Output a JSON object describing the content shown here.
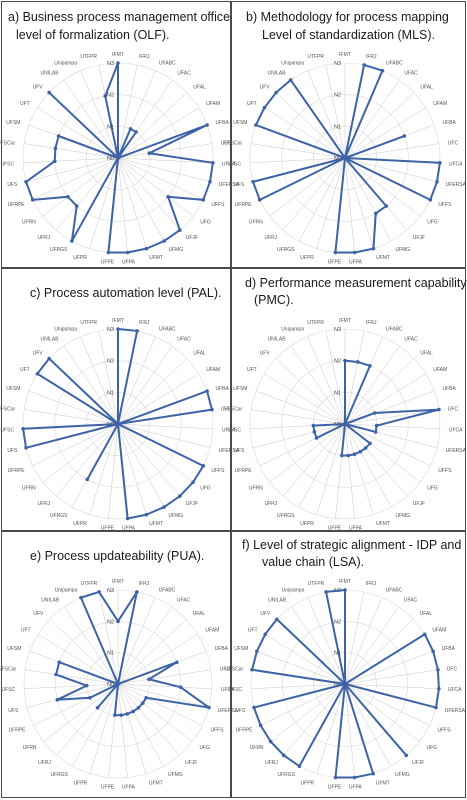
{
  "chart_data": [
    {
      "id": "olf",
      "type": "radar",
      "title_line1": "a) Business process management office",
      "title_line2": "level of formalization (OLF).",
      "levels": [
        "N0",
        "N1",
        "N2",
        "N3"
      ],
      "rlim": [
        0,
        3
      ],
      "categories": [
        "IFMT",
        "IFRJ",
        "UFABC",
        "UFAC",
        "UFAL",
        "UFAM",
        "UFBA",
        "UFC",
        "UFCA",
        "UFERSA",
        "UFFS",
        "UFG",
        "UFJF",
        "UFMG",
        "UFMT",
        "UFPA",
        "UFPE",
        "UFPR",
        "UFRGS",
        "UFRJ",
        "UFRN",
        "UFRPE",
        "UFS",
        "UFSC",
        "UFSCar",
        "UFSM",
        "UFT",
        "UFV",
        "UNILAB",
        "Unipampa",
        "UTFPR"
      ],
      "values": [
        3,
        0,
        1,
        1,
        0,
        0,
        3,
        1,
        3,
        3,
        3,
        2,
        3,
        3,
        3,
        3,
        3,
        0,
        3,
        2,
        2,
        3,
        3,
        2,
        2,
        2,
        0,
        3,
        0,
        0,
        2
      ]
    },
    {
      "id": "mls",
      "type": "radar",
      "title_line1": "b) Methodology for process mapping",
      "title_line2": "Level of standardization (MLS).",
      "levels": [
        "N0",
        "N1",
        "N2",
        "N3"
      ],
      "rlim": [
        0,
        3
      ],
      "categories": [
        "IFMT",
        "IFRJ",
        "UFABC",
        "UFAC",
        "UFAL",
        "UFAM",
        "UFBA",
        "UFC",
        "UFCA",
        "UFERSA",
        "UFFS",
        "UFG",
        "UFJF",
        "UFMG",
        "UFMT",
        "UFPA",
        "UFPE",
        "UFPR",
        "UFRGS",
        "UFRJ",
        "UFRN",
        "UFRPE",
        "UFS",
        "UFSC",
        "UFSCar",
        "UFSM",
        "UFT",
        "UFV",
        "UNILAB",
        "Unipampa",
        "UTFPR"
      ],
      "values": [
        0,
        3,
        3,
        0,
        0,
        0,
        2,
        0,
        3,
        3,
        3,
        0,
        2,
        2,
        3,
        3,
        3,
        0,
        0,
        0,
        0,
        3,
        3,
        0,
        0,
        3,
        3,
        3,
        3,
        0,
        0
      ]
    },
    {
      "id": "pal",
      "type": "radar",
      "title_line1": "c) Process automation level (PAL).",
      "title_line2": "",
      "levels": [
        "N0",
        "N1",
        "N2",
        "N3"
      ],
      "rlim": [
        0,
        3
      ],
      "categories": [
        "IFMT",
        "IFRJ",
        "UFABC",
        "UFAC",
        "UFAL",
        "UFAM",
        "UFBA",
        "UFC",
        "UFCA",
        "UFERSA",
        "UFFS",
        "UFG",
        "UFJF",
        "UFMG",
        "UFMT",
        "UFPA",
        "UFPE",
        "UFPR",
        "UFRGS",
        "UFRJ",
        "UFRN",
        "UFRPE",
        "UFS",
        "UFSC",
        "UFSCar",
        "UFSM",
        "UFT",
        "UFV",
        "UNILAB",
        "Unipampa",
        "UTFPR"
      ],
      "values": [
        3,
        3,
        0,
        0,
        0,
        0,
        3,
        3,
        0,
        0,
        3,
        3,
        3,
        3,
        3,
        3,
        0,
        0,
        2,
        0,
        0,
        0,
        3,
        3,
        0,
        0,
        3,
        3,
        0,
        0,
        0
      ]
    },
    {
      "id": "pmc",
      "type": "radar",
      "title_line1": "d) Performance measurement capability",
      "title_line2": "(PMC).",
      "levels": [
        "N0",
        "N1",
        "N2",
        "N3"
      ],
      "rlim": [
        0,
        3
      ],
      "categories": [
        "IFMT",
        "IFRJ",
        "UFABC",
        "UFAC",
        "UFAL",
        "UFAM",
        "UFBA",
        "UFC",
        "UFCA",
        "UFERSA",
        "UFFS",
        "UFG",
        "UFJF",
        "UFMG",
        "UFMT",
        "UFPA",
        "UFPE",
        "UFPR",
        "UFRGS",
        "UFRJ",
        "UFRN",
        "UFRPE",
        "UFS",
        "UFSC",
        "UFSCar",
        "UFSM",
        "UFT",
        "UFV",
        "UNILAB",
        "Unipampa",
        "UTFPR"
      ],
      "values": [
        2,
        2,
        2,
        0,
        0,
        0,
        1,
        3,
        1,
        1,
        0,
        1,
        1,
        1,
        1,
        1,
        1,
        0,
        0,
        0,
        0,
        1,
        1,
        1,
        0,
        0,
        0,
        0,
        0,
        0,
        0
      ]
    },
    {
      "id": "pua",
      "type": "radar",
      "title_line1": "e) Process updateability (PUA).",
      "title_line2": "",
      "levels": [
        "N0",
        "N1",
        "N2",
        "N3"
      ],
      "rlim": [
        0,
        3
      ],
      "categories": [
        "IFMT",
        "IFRJ",
        "UFABC",
        "UFAC",
        "UFAL",
        "UFAM",
        "UFBA",
        "UFC",
        "UFCA",
        "UFERSA",
        "UFFS",
        "UFG",
        "UFJF",
        "UFMG",
        "UFMT",
        "UFPA",
        "UFPE",
        "UFPR",
        "UFRGS",
        "UFRJ",
        "UFRN",
        "UFRPE",
        "UFS",
        "UFSC",
        "UFSCar",
        "UFSM",
        "UFT",
        "UFV",
        "UNILAB",
        "Unipampa",
        "UTFPR"
      ],
      "values": [
        2,
        3,
        0,
        0,
        0,
        0,
        2,
        1,
        2,
        3,
        1,
        1,
        1,
        1,
        1,
        1,
        1,
        0,
        0,
        1,
        0,
        1,
        2,
        1,
        2,
        2,
        0,
        0,
        0,
        3,
        3
      ]
    },
    {
      "id": "lsa",
      "type": "radar",
      "title_line1": "f) Level of strategic alignment - IDP and",
      "title_line2": "value chain (LSA).",
      "levels": [
        "N0",
        "N1",
        "N2",
        "N3"
      ],
      "rlim": [
        0,
        3
      ],
      "categories": [
        "IFMT",
        "IFRJ",
        "UFABC",
        "UFAC",
        "UFAL",
        "UFAM",
        "UFBA",
        "UFC",
        "UFCA",
        "UFERSA",
        "UFFS",
        "UFG",
        "UFJF",
        "UFMG",
        "UFMT",
        "UFPA",
        "UFPE",
        "UFPR",
        "UFRGS",
        "UFRJ",
        "UFRN",
        "UFRPE",
        "UFS",
        "UFSC",
        "UFSCar",
        "UFSM",
        "UFT",
        "UFV",
        "UNILAB",
        "Unipampa",
        "UTFPR"
      ],
      "values": [
        3,
        0,
        0,
        0,
        0,
        3,
        3,
        3,
        3,
        3,
        0,
        0,
        3,
        0,
        3,
        3,
        3,
        0,
        3,
        3,
        3,
        3,
        3,
        0,
        3,
        3,
        3,
        3,
        0,
        0,
        3
      ]
    }
  ],
  "colors": {
    "series": "#3d63a6",
    "grid": "#d9d9d9",
    "frame": "#4a4a4a"
  }
}
